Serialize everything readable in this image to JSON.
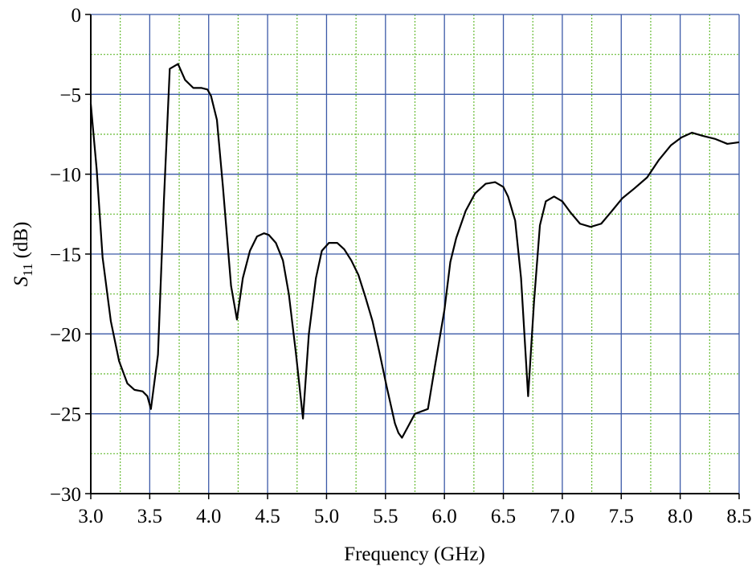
{
  "chart_data": {
    "type": "line",
    "xlabel": "Frequency (GHz)",
    "ylabel": [
      "S",
      "11",
      "(dB)"
    ],
    "xlim": [
      3.0,
      8.5
    ],
    "ylim": [
      -30,
      0
    ],
    "xticks": [
      {
        "value": 3,
        "label": "3.0"
      },
      3.5,
      {
        "value": 4,
        "label": "4.0"
      },
      4.5,
      {
        "value": 5,
        "label": "5.0"
      },
      5.5,
      {
        "value": 6,
        "label": "6.0"
      },
      6.5,
      {
        "value": 7,
        "label": "7.0"
      },
      7.5,
      {
        "value": 8,
        "label": "8.0"
      },
      8.5
    ],
    "yticks": [
      0,
      {
        "value": -5,
        "label": "−5"
      },
      {
        "value": -10,
        "label": "−10"
      },
      {
        "value": -15,
        "label": "−15"
      },
      {
        "value": -20,
        "label": "−20"
      },
      {
        "value": -25,
        "label": "−25"
      },
      {
        "value": -30,
        "label": "−30"
      }
    ],
    "x_minor_ticks": [
      3.25,
      3.75,
      4.25,
      4.75,
      5.25,
      5.75,
      6.25,
      6.75,
      7.25,
      7.75,
      8.25
    ],
    "y_minor_ticks": [
      -2.5,
      -7.5,
      -12.5,
      -17.5,
      -22.5,
      -27.5
    ],
    "grid": true,
    "grid_color": "#3c5aa8",
    "minor_grid_color": "#66bb33",
    "color": "#000000",
    "x": [
      3.0,
      3.05,
      3.1,
      3.17,
      3.24,
      3.31,
      3.37,
      3.44,
      3.48,
      3.51,
      3.57,
      3.62,
      3.67,
      3.74,
      3.8,
      3.87,
      3.94,
      3.99,
      4.02,
      4.07,
      4.12,
      4.19,
      4.24,
      4.29,
      4.35,
      4.41,
      4.47,
      4.51,
      4.57,
      4.63,
      4.68,
      4.74,
      4.8,
      4.85,
      4.91,
      4.96,
      5.02,
      5.09,
      5.15,
      5.21,
      5.27,
      5.33,
      5.39,
      5.45,
      5.51,
      5.58,
      5.61,
      5.64,
      5.75,
      5.86,
      5.92,
      6.0,
      6.05,
      6.1,
      6.18,
      6.26,
      6.35,
      6.43,
      6.5,
      6.54,
      6.6,
      6.65,
      6.71,
      6.76,
      6.81,
      6.86,
      6.93,
      7.0,
      7.07,
      7.15,
      7.24,
      7.33,
      7.41,
      7.51,
      7.61,
      7.72,
      7.82,
      7.92,
      8.01,
      8.1,
      8.19,
      8.3,
      8.4,
      8.5
    ],
    "values": [
      -5.6,
      -9.7,
      -15.2,
      -19.2,
      -21.7,
      -23.1,
      -23.5,
      -23.6,
      -23.9,
      -24.7,
      -21.3,
      -11.7,
      -3.4,
      -3.1,
      -4.1,
      -4.6,
      -4.6,
      -4.7,
      -5.1,
      -6.6,
      -10.7,
      -17.0,
      -19.1,
      -16.5,
      -14.8,
      -13.9,
      -13.7,
      -13.8,
      -14.3,
      -15.4,
      -17.5,
      -21.2,
      -25.3,
      -20.0,
      -16.5,
      -14.8,
      -14.3,
      -14.3,
      -14.7,
      -15.4,
      -16.3,
      -17.7,
      -19.2,
      -21.2,
      -23.3,
      -25.6,
      -26.2,
      -26.5,
      -25.0,
      -24.7,
      -22.0,
      -18.5,
      -15.5,
      -14.0,
      -12.3,
      -11.2,
      -10.6,
      -10.5,
      -10.8,
      -11.4,
      -12.9,
      -16.5,
      -23.9,
      -18.0,
      -13.2,
      -11.7,
      -11.4,
      -11.7,
      -12.4,
      -13.1,
      -13.3,
      -13.1,
      -12.4,
      -11.5,
      -10.9,
      -10.2,
      -9.1,
      -8.2,
      -7.7,
      -7.4,
      -7.6,
      -7.8,
      -8.1,
      -8.0
    ]
  }
}
